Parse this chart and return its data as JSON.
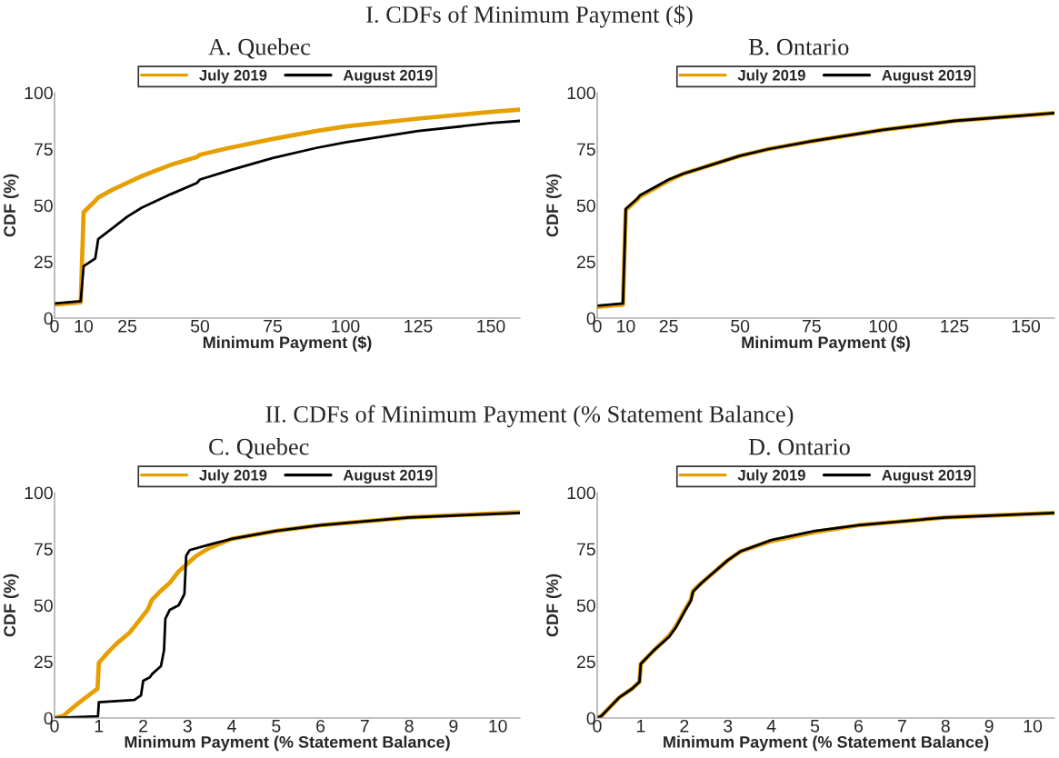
{
  "chart_data": [
    {
      "type": "line",
      "title": "A. Quebec",
      "annotations": [
        "I. CDFs of Minimum Payment ($)"
      ],
      "xlabel": "Minimum Payment ($)",
      "ylabel": "CDF (%)",
      "xlim": [
        0,
        160
      ],
      "xticks": [
        0,
        10,
        25,
        50,
        75,
        100,
        125,
        150
      ],
      "ylim": [
        0,
        100
      ],
      "yticks": [
        0,
        25,
        50,
        75,
        100
      ],
      "legend": "top",
      "grid": false,
      "line_style": "solid",
      "series": [
        {
          "name": "July 2019",
          "color": "#e69f00",
          "x": [
            0,
            9,
            10,
            14,
            15,
            20,
            25,
            30,
            35,
            40,
            45,
            49,
            50,
            60,
            75,
            90,
            100,
            125,
            150,
            160
          ],
          "values": [
            6,
            7,
            47,
            52,
            53.5,
            57,
            60,
            63,
            65.5,
            68,
            70,
            71.5,
            72.5,
            75.5,
            79.5,
            83,
            85,
            88.5,
            91.5,
            92.5
          ]
        },
        {
          "name": "August 2019",
          "color": "#000000",
          "x": [
            0,
            9,
            10,
            14,
            15,
            20,
            25,
            30,
            40,
            49,
            50,
            60,
            75,
            90,
            100,
            125,
            150,
            160
          ],
          "values": [
            6.5,
            7.5,
            23,
            26.5,
            35,
            40,
            45,
            49,
            55,
            60,
            61.5,
            65.5,
            71,
            75.5,
            78,
            83,
            86.5,
            87.5
          ]
        }
      ]
    },
    {
      "type": "line",
      "title": "B. Ontario",
      "xlabel": "Minimum Payment ($)",
      "ylabel": "CDF (%)",
      "xlim": [
        0,
        160
      ],
      "xticks": [
        0,
        10,
        25,
        50,
        75,
        100,
        125,
        150
      ],
      "ylim": [
        0,
        100
      ],
      "yticks": [
        0,
        25,
        50,
        75,
        100
      ],
      "legend": "top",
      "grid": false,
      "line_style": "solid",
      "series": [
        {
          "name": "July 2019",
          "color": "#e69f00",
          "x": [
            0,
            9,
            10,
            14,
            15,
            20,
            25,
            30,
            40,
            50,
            60,
            75,
            100,
            125,
            150,
            160
          ],
          "values": [
            5,
            6,
            48,
            52.5,
            54,
            57.5,
            61,
            64,
            68,
            72,
            75,
            78.5,
            83.5,
            87.5,
            90,
            91
          ]
        },
        {
          "name": "August 2019",
          "color": "#000000",
          "x": [
            0,
            9,
            10,
            14,
            15,
            20,
            25,
            30,
            40,
            50,
            60,
            75,
            100,
            125,
            150,
            160
          ],
          "values": [
            5.5,
            6.5,
            48.5,
            53,
            54.5,
            58,
            61.5,
            64,
            68,
            72,
            75,
            78.5,
            83.5,
            87.5,
            90,
            91
          ]
        }
      ]
    },
    {
      "type": "line",
      "title": "C. Quebec",
      "annotations": [
        "II. CDFs of Minimum Payment (% Statement Balance)"
      ],
      "xlabel": "Minimum Payment (% Statement Balance)",
      "ylabel": "CDF (%)",
      "xlim": [
        0,
        10.5
      ],
      "xticks": [
        0,
        1,
        2,
        3,
        4,
        5,
        6,
        7,
        8,
        9,
        10
      ],
      "ylim": [
        0,
        100
      ],
      "yticks": [
        0,
        25,
        50,
        75,
        100
      ],
      "legend": "top",
      "grid": false,
      "line_style": "solid",
      "series": [
        {
          "name": "July 2019",
          "color": "#e69f00",
          "x": [
            0,
            0.2,
            0.5,
            0.8,
            0.97,
            1,
            1.2,
            1.4,
            1.7,
            1.9,
            2.1,
            2.2,
            2.4,
            2.6,
            2.8,
            3,
            3.2,
            3.5,
            4,
            5,
            6,
            8,
            10.5
          ],
          "values": [
            0,
            1,
            6,
            10.5,
            13,
            24.5,
            29,
            33,
            38,
            43,
            48,
            52.5,
            56.5,
            60,
            65,
            68.5,
            72,
            75.5,
            79.5,
            83,
            85.5,
            89,
            91.3
          ]
        },
        {
          "name": "August 2019",
          "color": "#000000",
          "x": [
            0,
            0.98,
            1,
            1.8,
            1.95,
            2,
            2.15,
            2.2,
            2.4,
            2.47,
            2.5,
            2.6,
            2.8,
            2.93,
            2.97,
            3.05,
            3.5,
            4,
            5,
            6,
            8,
            10.5
          ],
          "values": [
            0,
            0.8,
            7,
            8,
            10,
            16.5,
            18,
            19.5,
            23,
            30,
            44,
            48,
            50,
            55,
            72,
            74.5,
            77,
            79.5,
            83,
            85.5,
            89,
            91
          ]
        }
      ]
    },
    {
      "type": "line",
      "title": "D. Ontario",
      "xlabel": "Minimum Payment (% Statement Balance)",
      "ylabel": "CDF (%)",
      "xlim": [
        0,
        10.5
      ],
      "xticks": [
        0,
        1,
        2,
        3,
        4,
        5,
        6,
        7,
        8,
        9,
        10
      ],
      "ylim": [
        0,
        100
      ],
      "yticks": [
        0,
        25,
        50,
        75,
        100
      ],
      "legend": "top",
      "grid": false,
      "line_style": "solid",
      "series": [
        {
          "name": "July 2019",
          "color": "#e69f00",
          "x": [
            0,
            0.1,
            0.3,
            0.5,
            0.8,
            0.97,
            1,
            1.3,
            1.65,
            1.8,
            2,
            2.15,
            2.2,
            2.4,
            2.7,
            3,
            3.3,
            4,
            5,
            6,
            8,
            10.5
          ],
          "values": [
            0,
            1,
            5,
            9,
            13,
            16,
            24,
            30,
            36.5,
            40.5,
            47.5,
            52.5,
            56.5,
            60,
            65,
            70,
            74,
            78.5,
            82.5,
            85.5,
            89,
            91
          ]
        },
        {
          "name": "August 2019",
          "color": "#000000",
          "x": [
            0,
            0.1,
            0.3,
            0.5,
            0.8,
            0.97,
            1,
            1.3,
            1.65,
            1.8,
            2,
            2.15,
            2.2,
            2.4,
            2.7,
            3,
            3.3,
            4,
            5,
            6,
            8,
            10.5
          ],
          "values": [
            0,
            1,
            5,
            9,
            13,
            16,
            24,
            30,
            36,
            40,
            47,
            52,
            56,
            60,
            65,
            70,
            74,
            79,
            83,
            85.5,
            89,
            91
          ]
        }
      ]
    }
  ]
}
